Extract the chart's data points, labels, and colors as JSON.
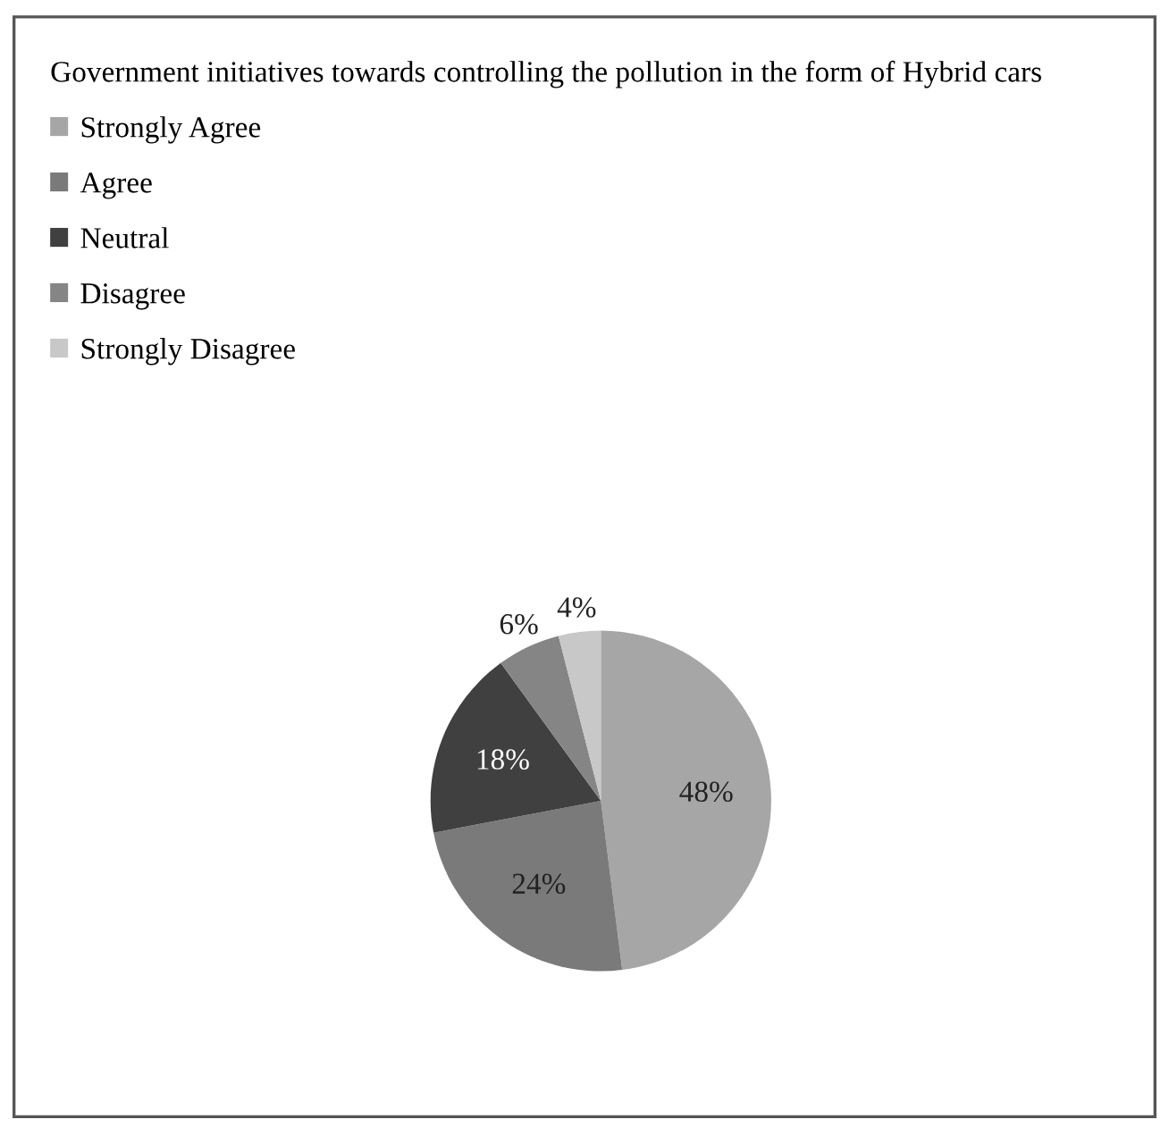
{
  "chart_data": {
    "type": "pie",
    "legend_title": "Government initiatives towards controlling the pollution in the form of Hybrid cars",
    "categories": [
      "Strongly Agree",
      "Agree",
      "Neutral",
      "Disagree",
      "Strongly Disagree"
    ],
    "values": [
      48,
      24,
      18,
      6,
      4
    ],
    "value_labels": [
      "48%",
      "24%",
      "18%",
      "6%",
      "4%"
    ],
    "colors": [
      "#a6a6a6",
      "#7a7a7a",
      "#404040",
      "#858585",
      "#c8c8c8"
    ],
    "legend": "top left"
  }
}
